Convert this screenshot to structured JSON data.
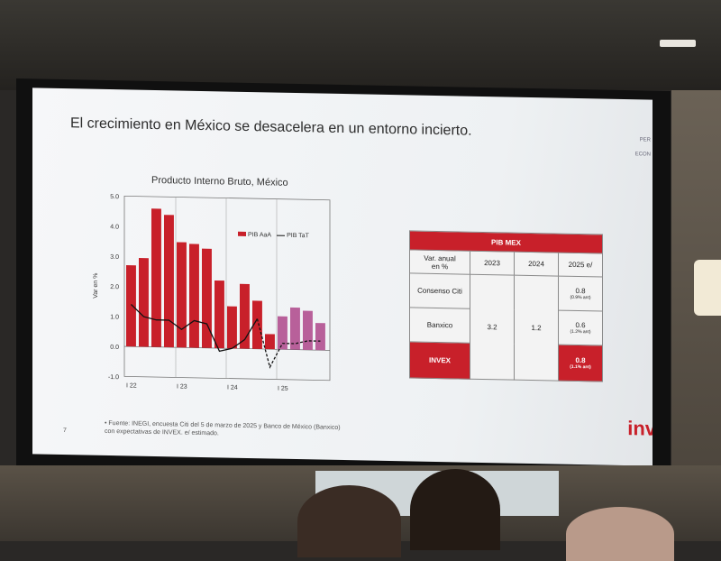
{
  "slide": {
    "title": "El crecimiento en México se desacelera en un entorno incierto.",
    "side_text_1": "PER",
    "side_text_2": "ECON",
    "page_number": "7",
    "footnote_line1": "•  Fuente: INEGI, encuesta Citi del 5 de marzo de 2025 y Banco de México (Banxico)",
    "footnote_line2": "con expectativas de INVEX. e/ estimado.",
    "logo": "inv"
  },
  "chart_data": {
    "type": "bar",
    "title": "Producto Interno Bruto, México",
    "ylabel": "Var en %",
    "ylim": [
      -1.0,
      5.0
    ],
    "y_ticks": [
      "5.0",
      "4.0",
      "3.0",
      "2.0",
      "1.0",
      "0.0",
      "-1.0"
    ],
    "x_tick_labels": [
      "I 22",
      "I 23",
      "I 24",
      "I 25"
    ],
    "legend": {
      "bars": "PIB AaA",
      "line": "PIB TaT"
    },
    "series": [
      {
        "name": "PIB AaA",
        "values": [
          2.7,
          2.95,
          4.6,
          4.4,
          3.5,
          3.45,
          3.3,
          2.25,
          1.4,
          2.15,
          1.6,
          0.5,
          1.1,
          1.4,
          1.3,
          0.9
        ],
        "estimated_from_index": 12
      },
      {
        "name": "PIB TaT",
        "values": [
          1.4,
          1.0,
          0.9,
          0.9,
          0.6,
          0.9,
          0.8,
          -0.1,
          0.0,
          0.3,
          1.0,
          -0.6,
          0.2,
          0.2,
          0.3,
          0.3
        ],
        "estimated_from_index": 11
      }
    ],
    "colors": {
      "bar": "#c8202a",
      "bar_estimate": "#b8609a",
      "line": "#111111"
    }
  },
  "table": {
    "header": "PIB MEX",
    "col_label": "Var. anual\nen %",
    "columns": [
      "2023",
      "2024",
      "2025 e/"
    ],
    "rows": [
      {
        "name": "Consenso Citi",
        "v2025": "0.8",
        "note": "(0.9% ant)"
      },
      {
        "name": "Banxico",
        "v2025": "0.6",
        "note": "(1.2% ant)"
      },
      {
        "name": "INVEX",
        "v2025": "0.8",
        "note": "(1.1% ant)"
      }
    ],
    "v2023": "3.2",
    "v2024": "1.2"
  }
}
